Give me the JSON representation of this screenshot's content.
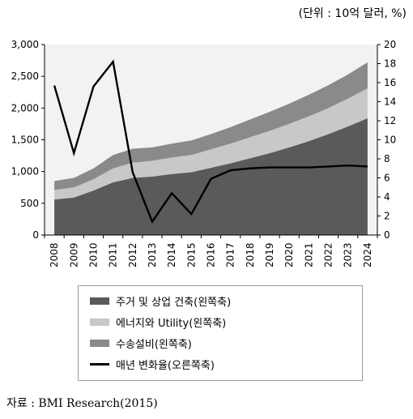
{
  "unit_note": "(단위 : 10억 달러, %)",
  "source": "자료 : BMI Research(2015)",
  "colors": {
    "residential": "#5a5a5a",
    "energy": "#c8c8c8",
    "transport": "#8a8a8a",
    "growth": "#000000",
    "plot_bg": "#f2f2f2"
  },
  "chart_data": {
    "type": "area",
    "x": [
      "2008",
      "2009",
      "2010",
      "2011",
      "2012",
      "2013",
      "2014",
      "2015",
      "2016",
      "2017",
      "2018",
      "2019",
      "2020",
      "2021",
      "2022",
      "2023",
      "2024"
    ],
    "left_axis": {
      "ylim": [
        0,
        3000
      ],
      "ticks": [
        "0",
        "500",
        "1,000",
        "1,500",
        "2,000",
        "2,500",
        "3,000"
      ]
    },
    "right_axis": {
      "ylim": [
        0,
        20
      ],
      "ticks": [
        "0",
        "2",
        "4",
        "6",
        "8",
        "10",
        "12",
        "14",
        "16",
        "18",
        "20"
      ]
    },
    "grid": false,
    "legend_position": "bottom",
    "series": [
      {
        "name": "주거 및 상업 건축(왼쪽축)",
        "type": "stacked-area",
        "axis": "left",
        "values": [
          560,
          590,
          700,
          830,
          900,
          920,
          960,
          990,
          1060,
          1130,
          1210,
          1290,
          1380,
          1480,
          1590,
          1710,
          1840
        ]
      },
      {
        "name": "에너지와 Utility(왼쪽축)",
        "type": "stacked-area",
        "axis": "left",
        "values": [
          150,
          160,
          180,
          220,
          240,
          250,
          260,
          270,
          290,
          310,
          330,
          350,
          370,
          390,
          410,
          440,
          470
        ]
      },
      {
        "name": "수송설비(왼쪽축)",
        "type": "stacked-area",
        "axis": "left",
        "values": [
          140,
          150,
          170,
          210,
          220,
          210,
          220,
          230,
          240,
          260,
          280,
          300,
          320,
          340,
          360,
          380,
          410
        ]
      },
      {
        "name": "매년 변화율(오른쪽축)",
        "type": "line",
        "axis": "right",
        "values": [
          15.7,
          8.6,
          15.6,
          18.2,
          6.6,
          1.4,
          4.4,
          2.2,
          5.9,
          6.8,
          7.0,
          7.1,
          7.1,
          7.1,
          7.2,
          7.3,
          7.2
        ]
      }
    ]
  }
}
